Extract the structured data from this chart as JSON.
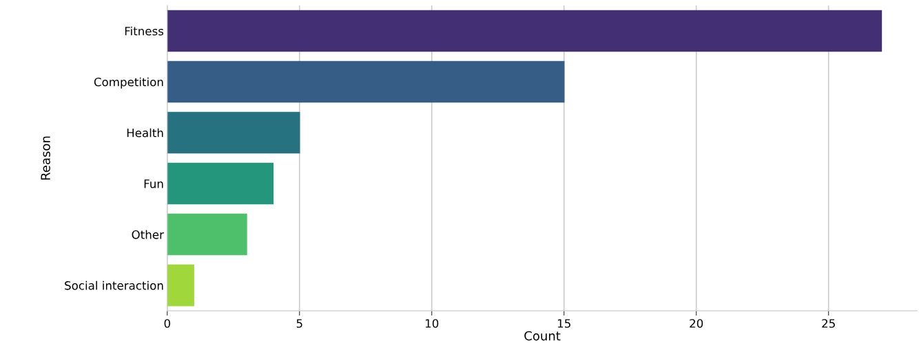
{
  "chart_data": {
    "type": "bar",
    "orientation": "horizontal",
    "xlabel": "Count",
    "ylabel": "Reason",
    "categories": [
      "Fitness",
      "Competition",
      "Health",
      "Fun",
      "Other",
      "Social interaction"
    ],
    "values": [
      27,
      15,
      5,
      4,
      3,
      1
    ],
    "colors": [
      "#433074",
      "#355d86",
      "#277280",
      "#23967c",
      "#4ec06b",
      "#a0d83c"
    ],
    "xlim": [
      0,
      28.35
    ],
    "xticks": [
      0,
      5,
      10,
      15,
      20,
      25
    ],
    "grid": "x",
    "legend": false
  }
}
